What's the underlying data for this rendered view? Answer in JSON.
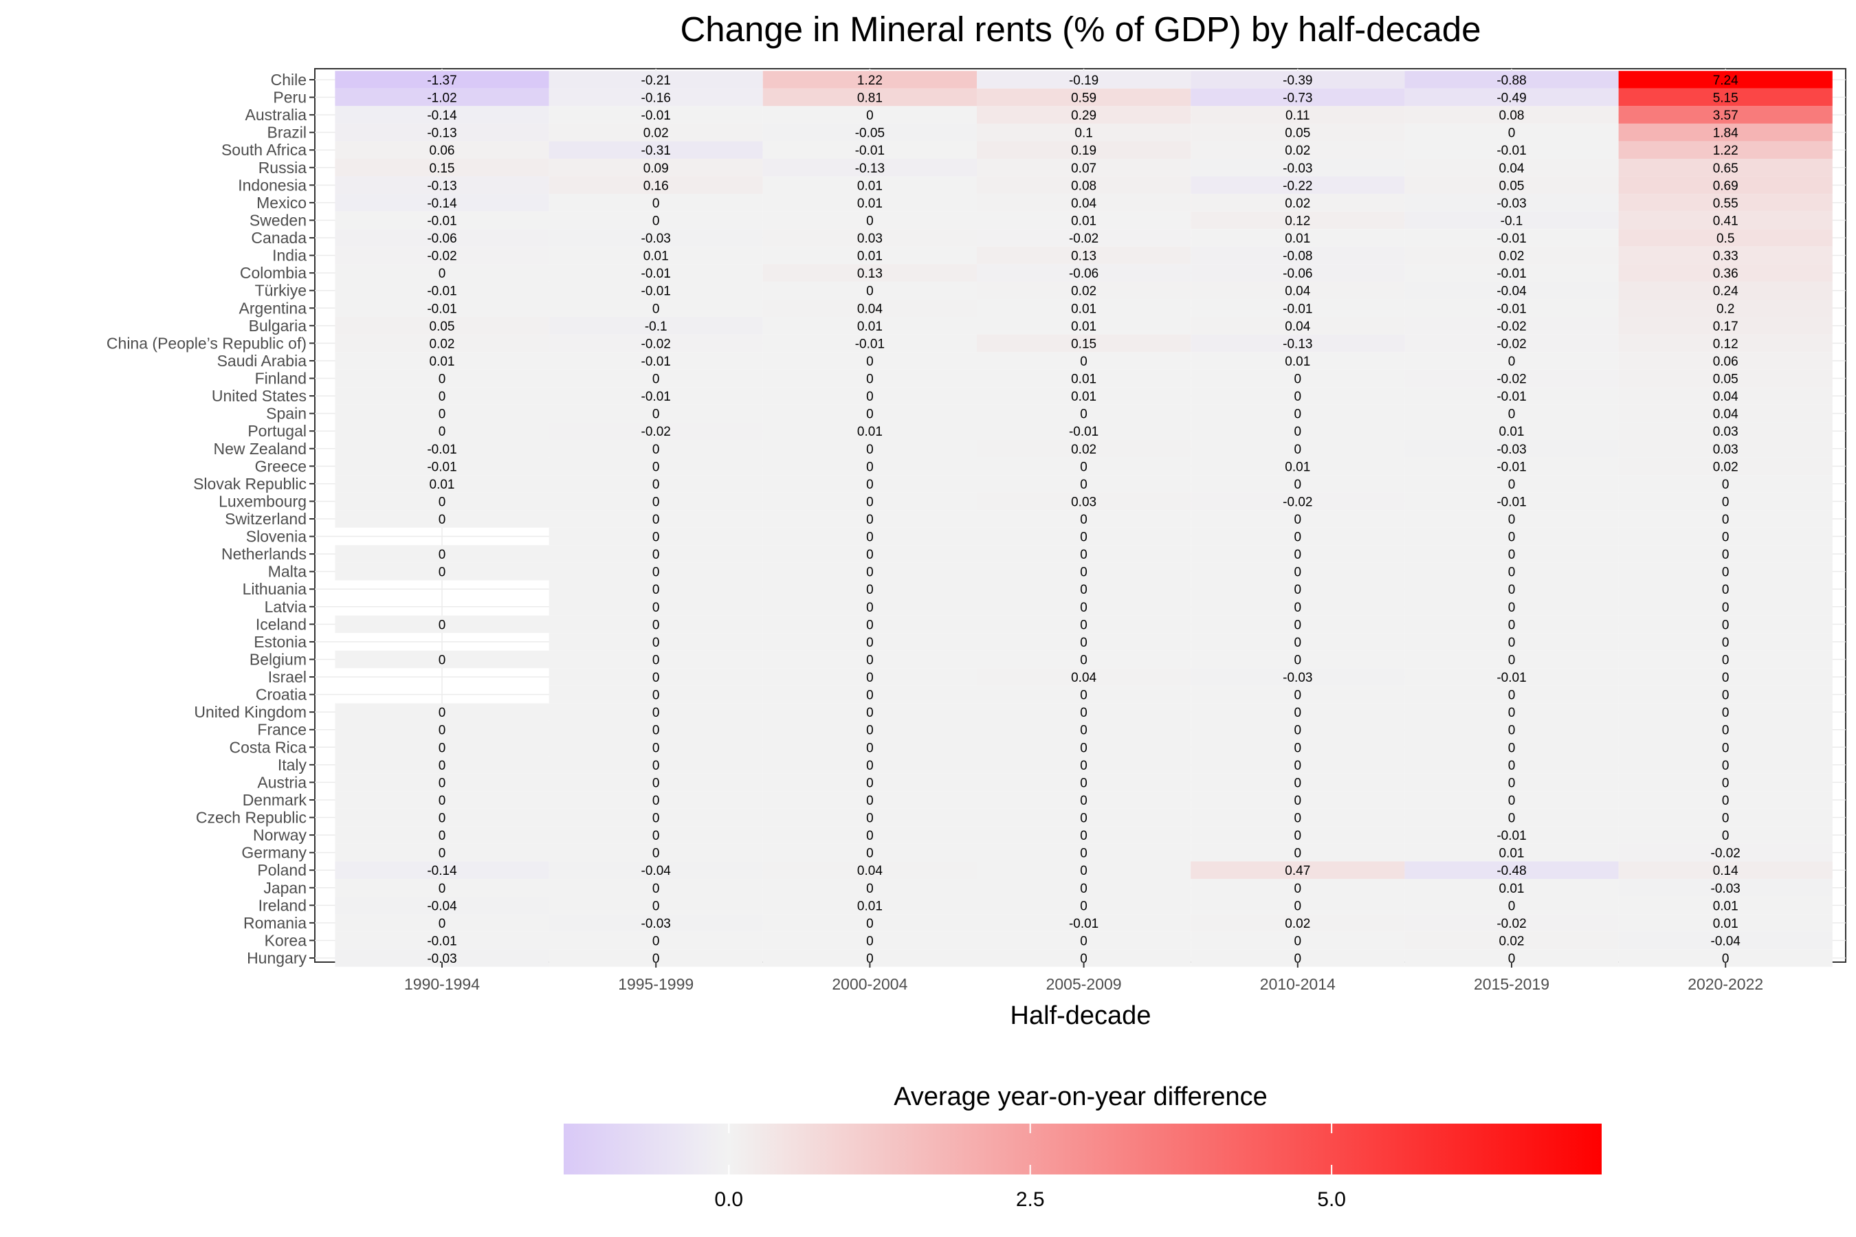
{
  "chart_data": {
    "type": "heatmap",
    "title": "Change in Mineral rents (% of GDP) by half-decade",
    "xlabel": "Half-decade",
    "ylabel": "",
    "legend": {
      "title": "Average year-on-year difference",
      "placement": "bottom",
      "ticks": [
        {
          "value": 0,
          "label": "0.0"
        },
        {
          "value": 2.5,
          "label": "2.5"
        },
        {
          "value": 5,
          "label": "5.0"
        }
      ],
      "min": -1.37,
      "max": 7.24,
      "colors": {
        "low": "#d9c9f7",
        "mid": "#f2f2f2",
        "high": "#ff0000"
      }
    },
    "x": [
      "1990-1994",
      "1995-1999",
      "2000-2004",
      "2005-2009",
      "2010-2014",
      "2015-2019",
      "2020-2022"
    ],
    "y": [
      "Chile",
      "Peru",
      "Australia",
      "Brazil",
      "South Africa",
      "Russia",
      "Indonesia",
      "Mexico",
      "Sweden",
      "Canada",
      "India",
      "Colombia",
      "Türkiye",
      "Argentina",
      "Bulgaria",
      "China (People’s Republic of)",
      "Saudi Arabia",
      "Finland",
      "United States",
      "Spain",
      "Portugal",
      "New Zealand",
      "Greece",
      "Slovak Republic",
      "Luxembourg",
      "Switzerland",
      "Slovenia",
      "Netherlands",
      "Malta",
      "Lithuania",
      "Latvia",
      "Iceland",
      "Estonia",
      "Belgium",
      "Israel",
      "Croatia",
      "United Kingdom",
      "France",
      "Costa Rica",
      "Italy",
      "Austria",
      "Denmark",
      "Czech Republic",
      "Norway",
      "Germany",
      "Poland",
      "Japan",
      "Ireland",
      "Romania",
      "Korea",
      "Hungary"
    ],
    "values": [
      [
        -1.37,
        -0.21,
        1.22,
        -0.19,
        -0.39,
        -0.88,
        7.24
      ],
      [
        -1.02,
        -0.16,
        0.81,
        0.59,
        -0.73,
        -0.49,
        5.15
      ],
      [
        -0.14,
        -0.01,
        0,
        0.29,
        0.11,
        0.08,
        3.57
      ],
      [
        -0.13,
        0.02,
        -0.05,
        0.1,
        0.05,
        0,
        1.84
      ],
      [
        0.06,
        -0.31,
        -0.01,
        0.19,
        0.02,
        -0.01,
        1.22
      ],
      [
        0.15,
        0.09,
        -0.13,
        0.07,
        -0.03,
        0.04,
        0.65
      ],
      [
        -0.13,
        0.16,
        0.01,
        0.08,
        -0.22,
        0.05,
        0.69
      ],
      [
        -0.14,
        0,
        0.01,
        0.04,
        0.02,
        -0.03,
        0.55
      ],
      [
        -0.01,
        0,
        0,
        0.01,
        0.12,
        -0.1,
        0.41
      ],
      [
        -0.06,
        -0.03,
        0.03,
        -0.02,
        0.01,
        -0.01,
        0.5
      ],
      [
        -0.02,
        0.01,
        0.01,
        0.13,
        -0.08,
        0.02,
        0.33
      ],
      [
        0,
        -0.01,
        0.13,
        -0.06,
        -0.06,
        -0.01,
        0.36
      ],
      [
        -0.01,
        -0.01,
        0,
        0.02,
        0.04,
        -0.04,
        0.24
      ],
      [
        -0.01,
        0,
        0.04,
        0.01,
        -0.01,
        -0.01,
        0.2
      ],
      [
        0.05,
        -0.1,
        0.01,
        0.01,
        0.04,
        -0.02,
        0.17
      ],
      [
        0.02,
        -0.02,
        -0.01,
        0.15,
        -0.13,
        -0.02,
        0.12
      ],
      [
        0.01,
        -0.01,
        0,
        0,
        0.01,
        0,
        0.06
      ],
      [
        0,
        0,
        0,
        0.01,
        0,
        -0.02,
        0.05
      ],
      [
        0,
        -0.01,
        0,
        0.01,
        0,
        -0.01,
        0.04
      ],
      [
        0,
        0,
        0,
        0,
        0,
        0,
        0.04
      ],
      [
        0,
        -0.02,
        0.01,
        -0.01,
        0,
        0.01,
        0.03
      ],
      [
        -0.01,
        0,
        0,
        0.02,
        0,
        -0.03,
        0.03
      ],
      [
        -0.01,
        0,
        0,
        0,
        0.01,
        -0.01,
        0.02
      ],
      [
        0.01,
        0,
        0,
        0,
        0,
        0,
        0
      ],
      [
        0,
        0,
        0,
        0.03,
        -0.02,
        -0.01,
        0
      ],
      [
        0,
        0,
        0,
        0,
        0,
        0,
        0
      ],
      [
        null,
        0,
        0,
        0,
        0,
        0,
        0
      ],
      [
        0,
        0,
        0,
        0,
        0,
        0,
        0
      ],
      [
        0,
        0,
        0,
        0,
        0,
        0,
        0
      ],
      [
        null,
        0,
        0,
        0,
        0,
        0,
        0
      ],
      [
        null,
        0,
        0,
        0,
        0,
        0,
        0
      ],
      [
        0,
        0,
        0,
        0,
        0,
        0,
        0
      ],
      [
        null,
        0,
        0,
        0,
        0,
        0,
        0
      ],
      [
        0,
        0,
        0,
        0,
        0,
        0,
        0
      ],
      [
        null,
        0,
        0,
        0.04,
        -0.03,
        -0.01,
        0
      ],
      [
        null,
        0,
        0,
        0,
        0,
        0,
        0
      ],
      [
        0,
        0,
        0,
        0,
        0,
        0,
        0
      ],
      [
        0,
        0,
        0,
        0,
        0,
        0,
        0
      ],
      [
        0,
        0,
        0,
        0,
        0,
        0,
        0
      ],
      [
        0,
        0,
        0,
        0,
        0,
        0,
        0
      ],
      [
        0,
        0,
        0,
        0,
        0,
        0,
        0
      ],
      [
        0,
        0,
        0,
        0,
        0,
        0,
        0
      ],
      [
        0,
        0,
        0,
        0,
        0,
        0,
        0
      ],
      [
        0,
        0,
        0,
        0,
        0,
        -0.01,
        0
      ],
      [
        0,
        0,
        0,
        0,
        0,
        0.01,
        -0.02
      ],
      [
        -0.14,
        -0.04,
        0.04,
        0,
        0.47,
        -0.48,
        0.14
      ],
      [
        0,
        0,
        0,
        0,
        0,
        0.01,
        -0.03
      ],
      [
        -0.04,
        0,
        0.01,
        0,
        0,
        0,
        0.01
      ],
      [
        0,
        -0.03,
        0,
        -0.01,
        0.02,
        -0.02,
        0.01
      ],
      [
        -0.01,
        0,
        0,
        0,
        0,
        0.02,
        -0.04
      ],
      [
        -0.03,
        0,
        0,
        0,
        0,
        0,
        0
      ]
    ]
  }
}
